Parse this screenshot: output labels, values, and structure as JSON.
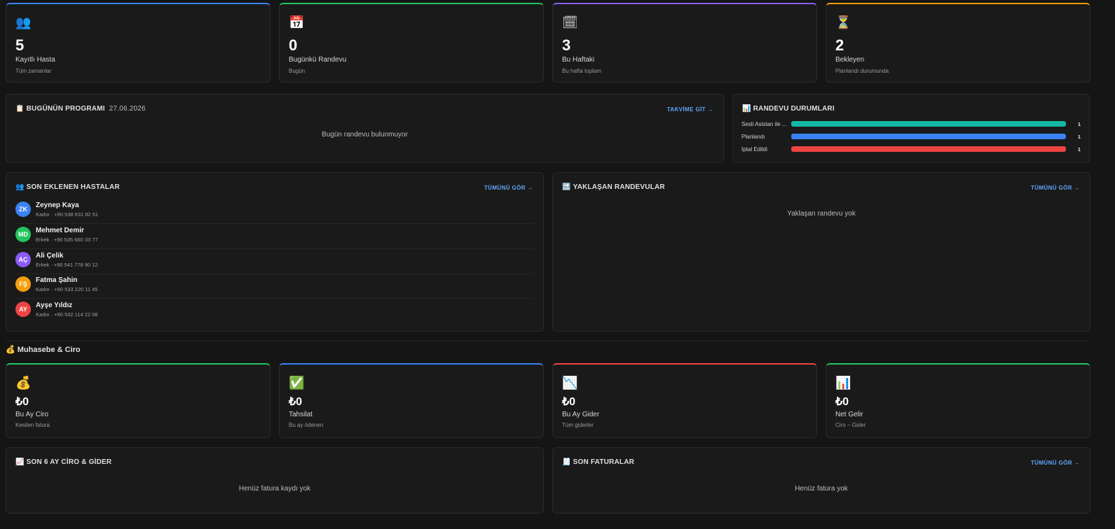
{
  "stats": [
    {
      "value": 5,
      "label": "Kayıtlı Hasta",
      "sub": "Tüm zamanlar"
    },
    {
      "value": 0,
      "label": "Bugünkü Randevu",
      "sub": "Bugün"
    },
    {
      "value": 3,
      "label": "Bu Haftaki",
      "sub": "Bu hafta toplam"
    },
    {
      "value": 2,
      "label": "Bekleyen",
      "sub": "Planlandı durumunda"
    }
  ],
  "schedule": {
    "title": "BUGÜNÜN PROGRAMI",
    "date": "27.06.2026",
    "link": "TAKVİME GİT →",
    "empty": "Bugün randevu bulunmuyor"
  },
  "status": {
    "title": "RANDEVU DURUMLARI",
    "items": [
      {
        "label": "Sesli Asistan ile ...",
        "value": 1,
        "color": "#14b8a6"
      },
      {
        "label": "Planlandı",
        "value": 1,
        "color": "#3b82f6"
      },
      {
        "label": "İptal Edildi",
        "value": 1,
        "color": "#ef4444"
      }
    ]
  },
  "patients": {
    "title": "SON EKLENEN HASTALAR",
    "link": "TÜMÜNÜ GÖR →",
    "items": [
      {
        "initials": "ZK",
        "name": "Zeynep Kaya",
        "detail": "Kadın · +90 538 631 82 51"
      },
      {
        "initials": "MD",
        "name": "Mehmet Demir",
        "detail": "Erkek · +90 535 660 33 77"
      },
      {
        "initials": "AÇ",
        "name": "Ali Çelik",
        "detail": "Erkek · +90 541 778 90 12"
      },
      {
        "initials": "FŞ",
        "name": "Fatma Şahin",
        "detail": "Kadın · +90 533 220 11 45"
      },
      {
        "initials": "AY",
        "name": "Ayşe Yıldız",
        "detail": "Kadın · +90 532 114 22 08"
      }
    ]
  },
  "upcoming": {
    "title": "YAKLAŞAN RANDEVULAR",
    "link": "TÜMÜNÜ GÖR →",
    "empty": "Yaklaşan randevu yok"
  },
  "accounting": {
    "title": "Muhasebe & Ciro",
    "cards": [
      {
        "value": "₺0",
        "label": "Bu Ay Ciro",
        "sub": "Kesilen fatura"
      },
      {
        "value": "₺0",
        "label": "Tahsilat",
        "sub": "Bu ay ödenen"
      },
      {
        "value": "₺0",
        "label": "Bu Ay Gider",
        "sub": "Tüm giderler"
      },
      {
        "value": "₺0",
        "label": "Net Gelir",
        "sub": "Ciro − Gider"
      }
    ]
  },
  "revenue_chart": {
    "title": "SON 6 AY CİRO & GİDER",
    "empty": "Henüz fatura kaydı yok"
  },
  "invoices": {
    "title": "SON FATURALAR",
    "link": "TÜMÜNÜ GÖR →",
    "empty": "Henüz fatura yok"
  }
}
